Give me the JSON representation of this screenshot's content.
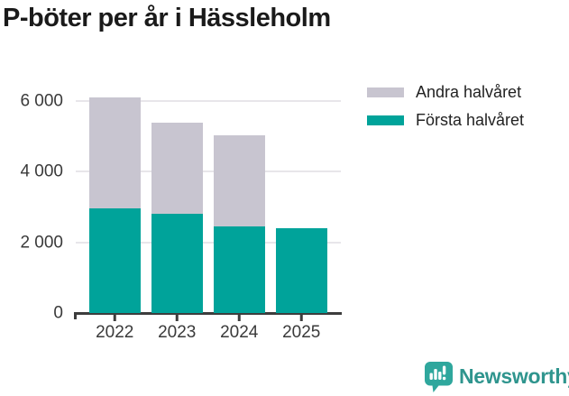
{
  "title": "P-böter per år i Hässleholm",
  "chart_data": {
    "type": "bar",
    "stacked": true,
    "title": "P-böter per år i Hässleholm",
    "categories": [
      "2022",
      "2023",
      "2024",
      "2025"
    ],
    "series": [
      {
        "name": "Första halvåret",
        "color": "#00a39a",
        "values": [
          2950,
          2800,
          2450,
          2400
        ]
      },
      {
        "name": "Andra halvåret",
        "color": "#c8c5d0",
        "values": [
          3150,
          2590,
          2580,
          0
        ]
      }
    ],
    "totals": [
      6100,
      5390,
      5030,
      2400
    ],
    "xlabel": "",
    "ylabel": "",
    "ylim": [
      0,
      6560
    ],
    "yticks": [
      0,
      2000,
      4000,
      6000
    ],
    "ytick_labels": [
      "0",
      "2 000",
      "4 000",
      "6 000"
    ],
    "grid": true,
    "legend_position": "top-right"
  },
  "legend": {
    "items": [
      {
        "label": "Andra halvåret",
        "color": "#c8c5d0"
      },
      {
        "label": "Första halvåret",
        "color": "#00a39a"
      }
    ]
  },
  "branding": {
    "name": "Newsworthy",
    "icon": "newsworthy-speech-bubble-chart-icon",
    "text_color": "#2f958e",
    "icon_color": "#2fa79d"
  },
  "colors": {
    "background": "#ffffff",
    "axis": "#3d3d3d",
    "gridline": "#e8e6ea",
    "tick_text": "#3a3a3a",
    "title_text": "#1a1a1a"
  }
}
